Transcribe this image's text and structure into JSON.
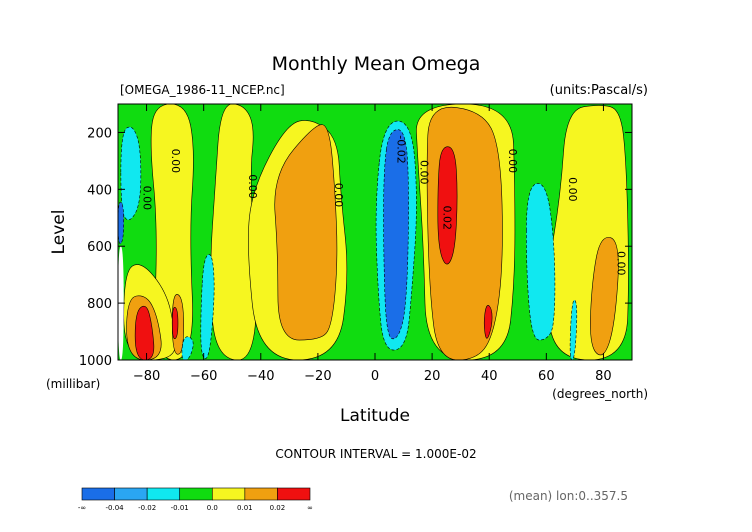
{
  "chart_data": {
    "type": "contour",
    "title": "Monthly Mean Omega",
    "file_label": "[OMEGA_1986-11_NCEP.nc]",
    "units_label": "(units:Pascal/s)",
    "xlabel": "Latitude",
    "xunits": "(degrees_north)",
    "ylabel": "Level",
    "yunits": "(millibar)",
    "xlim": [
      -90,
      90
    ],
    "ylim": [
      1000,
      100
    ],
    "x_ticks": [
      -80,
      -60,
      -40,
      -20,
      0,
      20,
      40,
      60,
      80
    ],
    "y_ticks": [
      200,
      400,
      600,
      800,
      1000
    ],
    "contour_interval_text": "CONTOUR INTERVAL = 1.000E-02",
    "mean_note": "(mean) lon:0..357.5",
    "colorbar": {
      "labels": [
        "-∞",
        "-0.04",
        "-0.02",
        "-0.01",
        "0.0",
        "0.01",
        "0.02",
        "∞"
      ],
      "colors": [
        "#1a6ee8",
        "#2aa6f2",
        "#10e8f0",
        "#10dc10",
        "#f6f620",
        "#f0a010",
        "#f01010"
      ]
    },
    "regions": [
      {
        "fill": "#f6f620",
        "pts": [
          [
            -54,
            100
          ],
          [
            -46,
            100
          ],
          [
            -42,
            180
          ],
          [
            -44,
            360
          ],
          [
            -40,
            1000
          ],
          [
            -56,
            1000
          ],
          [
            -58,
            700
          ],
          [
            -56,
            380
          ]
        ]
      },
      {
        "fill": "#f6f620",
        "pts": [
          [
            -31,
            170
          ],
          [
            -22,
            150
          ],
          [
            -13,
            220
          ],
          [
            -12,
            420
          ],
          [
            -9,
            700
          ],
          [
            -13,
            1000
          ],
          [
            -41,
            1000
          ],
          [
            -45,
            600
          ],
          [
            -43,
            400
          ]
        ]
      },
      {
        "fill": "#f6f620",
        "pts": [
          [
            -77,
            100
          ],
          [
            -66,
            100
          ],
          [
            -63,
            260
          ],
          [
            -65,
            550
          ],
          [
            -63,
            1000
          ],
          [
            -78,
            1000
          ],
          [
            -76,
            550
          ],
          [
            -79,
            230
          ]
        ]
      },
      {
        "fill": "#f6f620",
        "pts": [
          [
            -88,
            690
          ],
          [
            -82,
            650
          ],
          [
            -73,
            760
          ],
          [
            -70,
            900
          ],
          [
            -70,
            1000
          ],
          [
            -88,
            1000
          ]
        ]
      },
      {
        "fill": "#f6f620",
        "pts": [
          [
            14,
            100
          ],
          [
            48,
            100
          ],
          [
            49,
            380
          ],
          [
            49,
            720
          ],
          [
            46,
            1000
          ],
          [
            18,
            1000
          ],
          [
            17,
            600
          ],
          [
            15,
            300
          ]
        ]
      },
      {
        "fill": "#f6f620",
        "pts": [
          [
            67,
            120
          ],
          [
            79,
            100
          ],
          [
            86,
            120
          ],
          [
            88,
            300
          ],
          [
            89,
            700
          ],
          [
            88,
            1000
          ],
          [
            62,
            1000
          ],
          [
            60,
            720
          ],
          [
            65,
            420
          ]
        ]
      },
      {
        "fill": "#f0a010",
        "pts": [
          [
            -21,
            170
          ],
          [
            -16,
            175
          ],
          [
            -14,
            400
          ],
          [
            -13,
            650
          ],
          [
            -15,
            880
          ],
          [
            -19,
            930
          ],
          [
            -34,
            930
          ],
          [
            -34,
            620
          ],
          [
            -36,
            350
          ]
        ]
      },
      {
        "fill": "#f0a010",
        "pts": [
          [
            19,
            100
          ],
          [
            38,
            125
          ],
          [
            44,
            260
          ],
          [
            45,
            650
          ],
          [
            42,
            900
          ],
          [
            36,
            1000
          ],
          [
            22,
            1000
          ],
          [
            19,
            750
          ],
          [
            18,
            320
          ]
        ]
      },
      {
        "fill": "#f0a010",
        "pts": [
          [
            79,
            560
          ],
          [
            86,
            580
          ],
          [
            84,
            880
          ],
          [
            80,
            1000
          ],
          [
            75,
            950
          ],
          [
            76,
            720
          ]
        ]
      },
      {
        "fill": "#f0a010",
        "pts": [
          [
            -87,
            780
          ],
          [
            -80,
            770
          ],
          [
            -76,
            850
          ],
          [
            -74,
            1000
          ],
          [
            -87,
            1000
          ]
        ]
      },
      {
        "fill": "#f0a010",
        "pts": [
          [
            -71,
            760
          ],
          [
            -67,
            780
          ],
          [
            -67,
            980
          ],
          [
            -71,
            980
          ]
        ]
      },
      {
        "fill": "#f01010",
        "pts": [
          [
            23,
            250
          ],
          [
            28,
            250
          ],
          [
            29,
            420
          ],
          [
            28,
            620
          ],
          [
            25,
            680
          ],
          [
            22,
            600
          ],
          [
            22,
            380
          ]
        ]
      },
      {
        "fill": "#f01010",
        "pts": [
          [
            39,
            800
          ],
          [
            41,
            820
          ],
          [
            41,
            880
          ],
          [
            39,
            940
          ],
          [
            38,
            870
          ]
        ]
      },
      {
        "fill": "#f01010",
        "pts": [
          [
            -84,
            830
          ],
          [
            -80,
            800
          ],
          [
            -78,
            880
          ],
          [
            -77,
            1000
          ],
          [
            -84,
            1000
          ]
        ]
      },
      {
        "fill": "#f01010",
        "pts": [
          [
            -71,
            810
          ],
          [
            -69,
            820
          ],
          [
            -69,
            920
          ],
          [
            -71,
            930
          ]
        ]
      },
      {
        "fill": "#10e8f0",
        "pts": [
          [
            -89,
            200
          ],
          [
            -85,
            170
          ],
          [
            -82,
            250
          ],
          [
            -82,
            450
          ],
          [
            -86,
            520
          ],
          [
            -89,
            480
          ]
        ]
      },
      {
        "fill": "#10e8f0",
        "pts": [
          [
            -60,
            640
          ],
          [
            -57,
            620
          ],
          [
            -56,
            760
          ],
          [
            -58,
            1000
          ],
          [
            -61,
            990
          ],
          [
            -61,
            820
          ]
        ]
      },
      {
        "fill": "#10e8f0",
        "pts": [
          [
            -67,
            910
          ],
          [
            -63,
            930
          ],
          [
            -65,
            1000
          ],
          [
            -68,
            1000
          ]
        ]
      },
      {
        "fill": "#10e8f0",
        "pts": [
          [
            53,
            390
          ],
          [
            60,
            370
          ],
          [
            63,
            600
          ],
          [
            63,
            880
          ],
          [
            60,
            930
          ],
          [
            55,
            930
          ],
          [
            53,
            700
          ]
        ]
      },
      {
        "fill": "#10e8f0",
        "pts": [
          [
            69,
            780
          ],
          [
            71,
            800
          ],
          [
            70,
            1000
          ],
          [
            68,
            1000
          ]
        ]
      },
      {
        "fill": "#10e8f0",
        "pts": [
          [
            3,
            160
          ],
          [
            13,
            160
          ],
          [
            15,
            450
          ],
          [
            13,
            750
          ],
          [
            11,
            960
          ],
          [
            3,
            970
          ],
          [
            1,
            760
          ],
          [
            0,
            450
          ]
        ]
      },
      {
        "fill": "#1a6ee8",
        "pts": [
          [
            5,
            190
          ],
          [
            11,
            190
          ],
          [
            12,
            450
          ],
          [
            11,
            820
          ],
          [
            8,
            930
          ],
          [
            4,
            920
          ],
          [
            3,
            640
          ],
          [
            3,
            330
          ]
        ]
      },
      {
        "fill": "#1a6ee8",
        "pts": [
          [
            -90,
            440
          ],
          [
            -88,
            450
          ],
          [
            -88,
            580
          ],
          [
            -90,
            600
          ]
        ]
      },
      {
        "fill": "#ffffff",
        "pts": [
          [
            -90,
            600
          ],
          [
            -88,
            600
          ],
          [
            -88,
            1000
          ],
          [
            -90,
            1000
          ]
        ]
      }
    ],
    "contour_labels": [
      {
        "text": "0.00",
        "x": -80,
        "y": 430
      },
      {
        "text": "0.00",
        "x": -70,
        "y": 300
      },
      {
        "text": "0.00",
        "x": -43,
        "y": 390
      },
      {
        "text": "0.00",
        "x": -13,
        "y": 420
      },
      {
        "text": "-0.02",
        "x": 9,
        "y": 260
      },
      {
        "text": "0.00",
        "x": 17,
        "y": 340
      },
      {
        "text": "0.02",
        "x": 25,
        "y": 500
      },
      {
        "text": "0.00",
        "x": 48,
        "y": 300
      },
      {
        "text": "0.00",
        "x": 69,
        "y": 400
      },
      {
        "text": "0.00",
        "x": 86,
        "y": 660
      }
    ]
  }
}
